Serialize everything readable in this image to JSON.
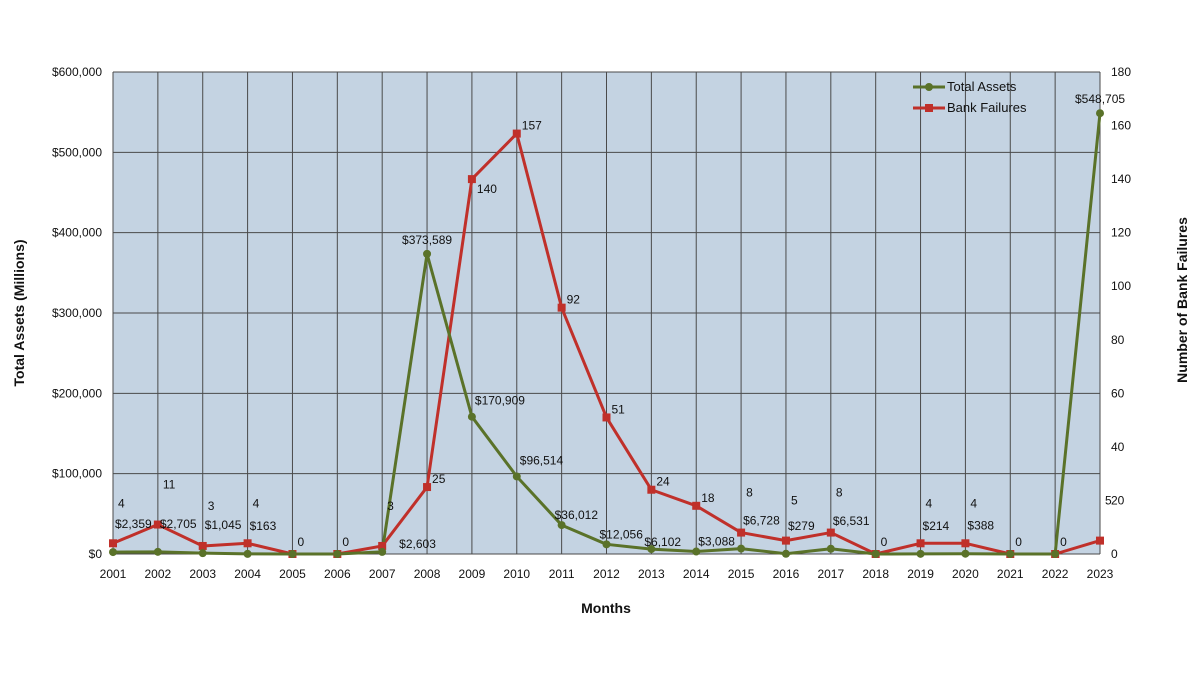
{
  "chart_data": {
    "type": "line",
    "title": "",
    "xlabel": "Months",
    "ylabel_left": "Total Assets (Millions)",
    "ylabel_right": "Number of Bank Failures",
    "categories": [
      "2001",
      "2002",
      "2003",
      "2004",
      "2005",
      "2006",
      "2007",
      "2008",
      "2009",
      "2010",
      "2011",
      "2012",
      "2013",
      "2014",
      "2015",
      "2016",
      "2017",
      "2018",
      "2019",
      "2020",
      "2021",
      "2022",
      "2023"
    ],
    "y_left": {
      "min": 0,
      "max": 600000,
      "ticks": [
        "$0",
        "$100,000",
        "$200,000",
        "$300,000",
        "$400,000",
        "$500,000",
        "$600,000"
      ]
    },
    "y_right": {
      "min": 0,
      "max": 180,
      "ticks": [
        "0",
        "20",
        "40",
        "60",
        "80",
        "100",
        "120",
        "140",
        "160",
        "180"
      ]
    },
    "grid": true,
    "legend_position": "top-right",
    "series": [
      {
        "name": "Total Assets",
        "axis": "left",
        "color": "#5a7229",
        "marker": "circle",
        "values": [
          2359,
          2705,
          1045,
          163,
          0,
          0,
          2603,
          373589,
          170909,
          96514,
          36012,
          12056,
          6102,
          3088,
          6728,
          279,
          6531,
          0,
          214,
          388,
          0,
          0,
          548705
        ],
        "labels": [
          "$2,359",
          "$2,705",
          "$1,045",
          "$163",
          "",
          "",
          "$2,603",
          "$373,589",
          "$170,909",
          "$96,514",
          "$36,012",
          "$12,056",
          "$6,102",
          "$3,088",
          "$6,728",
          "$279",
          "$6,531",
          "",
          "$214",
          "$388",
          "",
          "",
          "$548,705"
        ]
      },
      {
        "name": "Bank Failures",
        "axis": "right",
        "color": "#c0302a",
        "marker": "square",
        "values": [
          4,
          11,
          3,
          4,
          0,
          0,
          3,
          25,
          140,
          157,
          92,
          51,
          24,
          18,
          8,
          5,
          8,
          0,
          4,
          4,
          0,
          0,
          5
        ],
        "labels": [
          "4",
          "11",
          "3",
          "4",
          "0",
          "0",
          "3",
          "25",
          "140",
          "157",
          "92",
          "51",
          "24",
          "18",
          "8",
          "5",
          "8",
          "0",
          "4",
          "4",
          "0",
          "0",
          "5"
        ]
      }
    ]
  }
}
